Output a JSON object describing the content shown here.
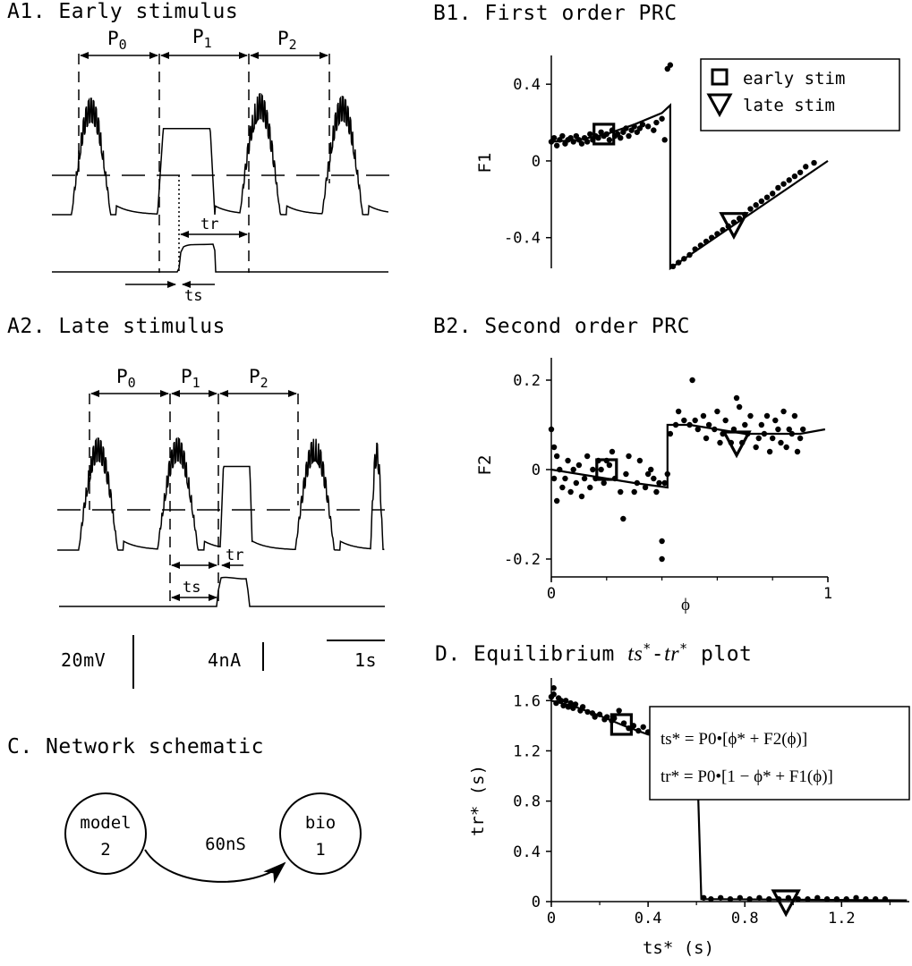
{
  "panels": {
    "a1": {
      "title": "A1. Early stimulus",
      "p0": "P",
      "p0sub": "0",
      "p1": "P",
      "p1sub": "1",
      "p2": "P",
      "p2sub": "2",
      "tr": "tr",
      "ts": "ts"
    },
    "a2": {
      "title": "A2. Late stimulus",
      "p0": "P",
      "p0sub": "0",
      "p1": "P",
      "p1sub": "1",
      "p2": "P",
      "p2sub": "2",
      "tr": "tr",
      "ts": "ts"
    },
    "b1": {
      "title": "B1. First order PRC"
    },
    "b2": {
      "title": "B2. Second order PRC"
    },
    "c": {
      "title": "C. Network schematic",
      "node_a_line1": "model",
      "node_a_line2": "2",
      "node_b_line1": "bio",
      "node_b_line2": "1",
      "synapse": "60nS"
    },
    "d": {
      "title_prefix": "D. Equilibrium ",
      "title_ts": "ts",
      "title_star": "*",
      "title_dash": "-",
      "title_tr": "tr",
      "title_suffix": " plot",
      "eq1": "ts* = P0•[ϕ* + F2(ϕ)]",
      "eq2": "tr* = P0•[1 − ϕ* + F1(ϕ)]"
    }
  },
  "scalebars": {
    "voltage": "20mV",
    "current": "4nA",
    "time": "1s"
  },
  "legend": {
    "early": "early stim",
    "late": "late stim"
  },
  "chart_data": [
    {
      "type": "scatter",
      "id": "B1",
      "title": "B1. First order PRC",
      "xlabel": "",
      "ylabel": "F1",
      "xlim": [
        0,
        1
      ],
      "ylim": [
        -0.56,
        0.55
      ],
      "yticks": [
        "0.4",
        "0",
        "-0.4"
      ],
      "ytick_values": [
        0.4,
        0,
        -0.4
      ],
      "points": [
        [
          0.0,
          0.1
        ],
        [
          0.01,
          0.12
        ],
        [
          0.02,
          0.08
        ],
        [
          0.03,
          0.11
        ],
        [
          0.04,
          0.13
        ],
        [
          0.05,
          0.09
        ],
        [
          0.06,
          0.11
        ],
        [
          0.07,
          0.12
        ],
        [
          0.08,
          0.1
        ],
        [
          0.09,
          0.13
        ],
        [
          0.1,
          0.11
        ],
        [
          0.11,
          0.09
        ],
        [
          0.12,
          0.12
        ],
        [
          0.13,
          0.1
        ],
        [
          0.14,
          0.14
        ],
        [
          0.15,
          0.11
        ],
        [
          0.16,
          0.13
        ],
        [
          0.17,
          0.12
        ],
        [
          0.18,
          0.15
        ],
        [
          0.19,
          0.13
        ],
        [
          0.2,
          0.14
        ],
        [
          0.21,
          0.11
        ],
        [
          0.22,
          0.16
        ],
        [
          0.23,
          0.13
        ],
        [
          0.24,
          0.14
        ],
        [
          0.25,
          0.12
        ],
        [
          0.26,
          0.15
        ],
        [
          0.27,
          0.17
        ],
        [
          0.28,
          0.13
        ],
        [
          0.29,
          0.16
        ],
        [
          0.3,
          0.18
        ],
        [
          0.31,
          0.15
        ],
        [
          0.32,
          0.17
        ],
        [
          0.33,
          0.19
        ],
        [
          0.35,
          0.18
        ],
        [
          0.37,
          0.16
        ],
        [
          0.38,
          0.2
        ],
        [
          0.4,
          0.22
        ],
        [
          0.41,
          0.11
        ],
        [
          0.42,
          0.48
        ],
        [
          0.43,
          0.5
        ],
        [
          0.44,
          -0.55
        ],
        [
          0.46,
          -0.53
        ],
        [
          0.48,
          -0.51
        ],
        [
          0.5,
          -0.49
        ],
        [
          0.52,
          -0.46
        ],
        [
          0.54,
          -0.44
        ],
        [
          0.56,
          -0.42
        ],
        [
          0.58,
          -0.4
        ],
        [
          0.6,
          -0.38
        ],
        [
          0.62,
          -0.36
        ],
        [
          0.64,
          -0.34
        ],
        [
          0.66,
          -0.32
        ],
        [
          0.68,
          -0.3
        ],
        [
          0.7,
          -0.28
        ],
        [
          0.72,
          -0.25
        ],
        [
          0.74,
          -0.23
        ],
        [
          0.76,
          -0.21
        ],
        [
          0.78,
          -0.19
        ],
        [
          0.8,
          -0.17
        ],
        [
          0.82,
          -0.14
        ],
        [
          0.84,
          -0.12
        ],
        [
          0.86,
          -0.1
        ],
        [
          0.88,
          -0.08
        ],
        [
          0.9,
          -0.06
        ],
        [
          0.92,
          -0.03
        ],
        [
          0.95,
          -0.01
        ]
      ],
      "fit_line": [
        [
          0.0,
          0.1
        ],
        [
          0.1,
          0.11
        ],
        [
          0.2,
          0.14
        ],
        [
          0.3,
          0.19
        ],
        [
          0.4,
          0.25
        ],
        [
          0.43,
          0.29
        ],
        [
          0.43,
          -0.56
        ],
        [
          1.0,
          0.0
        ]
      ],
      "markers": {
        "early": [
          0.19,
          0.14
        ],
        "late": [
          0.66,
          -0.33
        ]
      }
    },
    {
      "type": "scatter",
      "id": "B2",
      "title": "B2. Second order PRC",
      "xlabel": "ϕ",
      "ylabel": "F2",
      "xlim": [
        0,
        1
      ],
      "ylim": [
        -0.24,
        0.25
      ],
      "xticks": [
        "0",
        "1"
      ],
      "xtick_values": [
        0,
        1
      ],
      "yticks": [
        "0.2",
        "0",
        "-0.2"
      ],
      "ytick_values": [
        0.2,
        0,
        -0.2
      ],
      "points": [
        [
          0.0,
          0.09
        ],
        [
          0.01,
          0.05
        ],
        [
          0.01,
          -0.02
        ],
        [
          0.02,
          0.03
        ],
        [
          0.02,
          -0.07
        ],
        [
          0.03,
          0.0
        ],
        [
          0.04,
          -0.04
        ],
        [
          0.05,
          -0.02
        ],
        [
          0.06,
          0.02
        ],
        [
          0.07,
          -0.05
        ],
        [
          0.08,
          0.0
        ],
        [
          0.09,
          -0.03
        ],
        [
          0.1,
          0.01
        ],
        [
          0.11,
          -0.06
        ],
        [
          0.12,
          -0.02
        ],
        [
          0.13,
          0.03
        ],
        [
          0.14,
          -0.04
        ],
        [
          0.15,
          0.0
        ],
        [
          0.16,
          -0.02
        ],
        [
          0.17,
          0.02
        ],
        [
          0.18,
          0.0
        ],
        [
          0.19,
          -0.03
        ],
        [
          0.2,
          0.02
        ],
        [
          0.21,
          0.01
        ],
        [
          0.22,
          0.04
        ],
        [
          0.23,
          -0.02
        ],
        [
          0.25,
          -0.05
        ],
        [
          0.26,
          -0.11
        ],
        [
          0.27,
          -0.01
        ],
        [
          0.28,
          0.03
        ],
        [
          0.3,
          -0.05
        ],
        [
          0.31,
          -0.03
        ],
        [
          0.32,
          0.02
        ],
        [
          0.34,
          -0.04
        ],
        [
          0.35,
          -0.01
        ],
        [
          0.36,
          0.0
        ],
        [
          0.37,
          -0.02
        ],
        [
          0.38,
          -0.05
        ],
        [
          0.39,
          -0.03
        ],
        [
          0.4,
          -0.16
        ],
        [
          0.4,
          -0.2
        ],
        [
          0.41,
          -0.03
        ],
        [
          0.42,
          -0.01
        ],
        [
          0.43,
          0.08
        ],
        [
          0.45,
          0.1
        ],
        [
          0.46,
          0.13
        ],
        [
          0.48,
          0.11
        ],
        [
          0.5,
          0.1
        ],
        [
          0.51,
          0.2
        ],
        [
          0.52,
          0.11
        ],
        [
          0.53,
          0.09
        ],
        [
          0.55,
          0.12
        ],
        [
          0.56,
          0.07
        ],
        [
          0.57,
          0.1
        ],
        [
          0.59,
          0.09
        ],
        [
          0.6,
          0.13
        ],
        [
          0.61,
          0.06
        ],
        [
          0.62,
          0.08
        ],
        [
          0.63,
          0.11
        ],
        [
          0.65,
          0.06
        ],
        [
          0.66,
          0.09
        ],
        [
          0.67,
          0.16
        ],
        [
          0.68,
          0.14
        ],
        [
          0.69,
          0.06
        ],
        [
          0.7,
          0.1
        ],
        [
          0.71,
          0.08
        ],
        [
          0.72,
          0.12
        ],
        [
          0.74,
          0.05
        ],
        [
          0.75,
          0.07
        ],
        [
          0.76,
          0.1
        ],
        [
          0.77,
          0.08
        ],
        [
          0.78,
          0.12
        ],
        [
          0.79,
          0.04
        ],
        [
          0.8,
          0.07
        ],
        [
          0.81,
          0.11
        ],
        [
          0.82,
          0.09
        ],
        [
          0.83,
          0.06
        ],
        [
          0.84,
          0.13
        ],
        [
          0.85,
          0.05
        ],
        [
          0.86,
          0.09
        ],
        [
          0.87,
          0.08
        ],
        [
          0.88,
          0.12
        ],
        [
          0.89,
          0.04
        ],
        [
          0.9,
          0.07
        ],
        [
          0.91,
          0.09
        ]
      ],
      "fit_line": [
        [
          0.0,
          0.0
        ],
        [
          0.1,
          -0.01
        ],
        [
          0.2,
          -0.02
        ],
        [
          0.3,
          -0.03
        ],
        [
          0.42,
          -0.04
        ],
        [
          0.42,
          0.1
        ],
        [
          0.5,
          0.1
        ],
        [
          0.6,
          0.09
        ],
        [
          0.7,
          0.08
        ],
        [
          0.8,
          0.08
        ],
        [
          0.9,
          0.08
        ],
        [
          0.99,
          0.09
        ]
      ],
      "markers": {
        "early": [
          0.2,
          0.0
        ],
        "late": [
          0.67,
          0.06
        ]
      }
    },
    {
      "type": "scatter",
      "id": "D",
      "xlabel": "ts* (s)",
      "ylabel": "tr* (s)",
      "xlim": [
        0,
        1.48
      ],
      "ylim": [
        0,
        1.78
      ],
      "xticks": [
        "0",
        "0.4",
        "0.8",
        "1.2"
      ],
      "xtick_values": [
        0,
        0.4,
        0.8,
        1.2
      ],
      "yticks": [
        "0",
        "0.4",
        "0.8",
        "1.2",
        "1.6"
      ],
      "ytick_values": [
        0,
        0.4,
        0.8,
        1.2,
        1.6
      ],
      "points": [
        [
          0.0,
          1.63
        ],
        [
          0.01,
          1.7
        ],
        [
          0.01,
          1.65
        ],
        [
          0.02,
          1.58
        ],
        [
          0.03,
          1.62
        ],
        [
          0.04,
          1.6
        ],
        [
          0.05,
          1.56
        ],
        [
          0.06,
          1.6
        ],
        [
          0.07,
          1.55
        ],
        [
          0.08,
          1.58
        ],
        [
          0.09,
          1.54
        ],
        [
          0.1,
          1.57
        ],
        [
          0.12,
          1.52
        ],
        [
          0.13,
          1.55
        ],
        [
          0.15,
          1.51
        ],
        [
          0.17,
          1.5
        ],
        [
          0.18,
          1.47
        ],
        [
          0.2,
          1.49
        ],
        [
          0.22,
          1.45
        ],
        [
          0.23,
          1.47
        ],
        [
          0.25,
          1.44
        ],
        [
          0.26,
          1.46
        ],
        [
          0.28,
          1.52
        ],
        [
          0.3,
          1.42
        ],
        [
          0.32,
          1.38
        ],
        [
          0.34,
          1.4
        ],
        [
          0.36,
          1.36
        ],
        [
          0.38,
          1.39
        ],
        [
          0.4,
          1.35
        ],
        [
          0.42,
          1.32
        ],
        [
          0.44,
          1.36
        ],
        [
          0.46,
          1.3
        ],
        [
          0.48,
          1.33
        ],
        [
          0.5,
          1.29
        ],
        [
          0.52,
          1.31
        ],
        [
          0.55,
          1.28
        ],
        [
          0.57,
          1.3
        ],
        [
          0.58,
          1.1
        ],
        [
          0.58,
          1.06
        ],
        [
          0.63,
          0.03
        ],
        [
          0.66,
          0.02
        ],
        [
          0.7,
          0.03
        ],
        [
          0.74,
          0.02
        ],
        [
          0.78,
          0.03
        ],
        [
          0.82,
          0.02
        ],
        [
          0.86,
          0.03
        ],
        [
          0.9,
          0.02
        ],
        [
          0.94,
          0.02
        ],
        [
          0.98,
          0.03
        ],
        [
          1.02,
          0.02
        ],
        [
          1.06,
          0.02
        ],
        [
          1.1,
          0.03
        ],
        [
          1.14,
          0.02
        ],
        [
          1.18,
          0.02
        ],
        [
          1.22,
          0.02
        ],
        [
          1.26,
          0.03
        ],
        [
          1.3,
          0.02
        ],
        [
          1.34,
          0.02
        ],
        [
          1.38,
          0.02
        ]
      ],
      "fit_line": [
        [
          0.0,
          1.6
        ],
        [
          0.1,
          1.55
        ],
        [
          0.2,
          1.48
        ],
        [
          0.3,
          1.4
        ],
        [
          0.4,
          1.33
        ],
        [
          0.5,
          1.3
        ],
        [
          0.6,
          1.29
        ],
        [
          0.62,
          0.02
        ],
        [
          1.47,
          0.01
        ]
      ],
      "markers": {
        "early": [
          0.29,
          1.41
        ],
        "late": [
          0.97,
          0.0
        ]
      }
    }
  ]
}
